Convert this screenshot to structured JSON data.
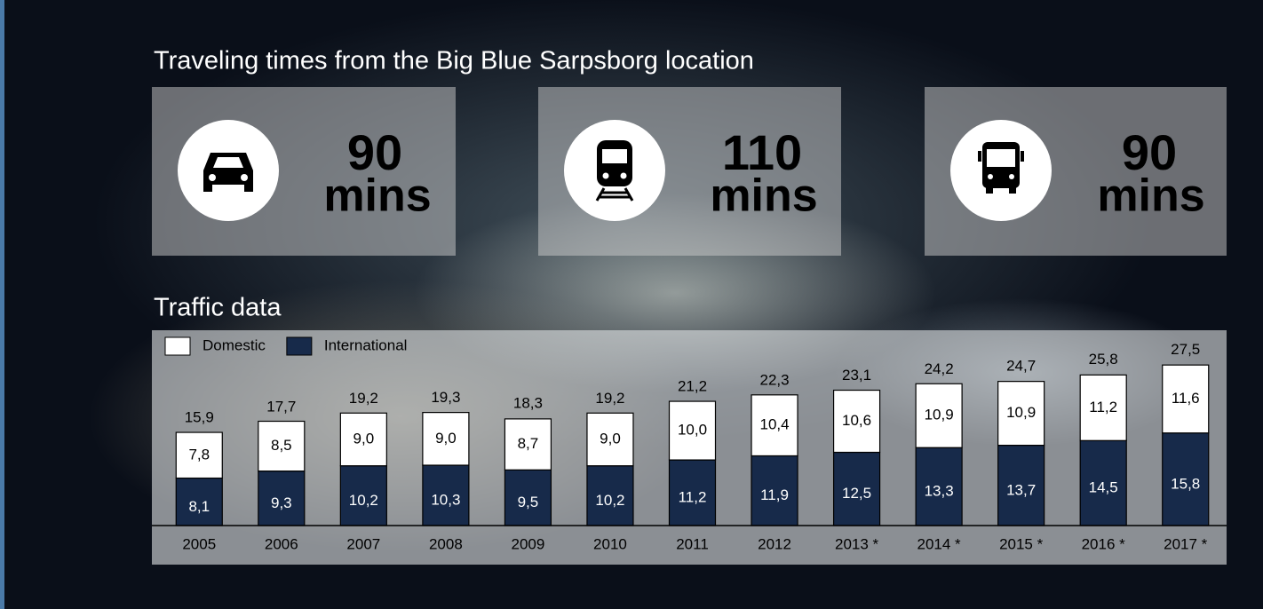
{
  "heading": "Traveling times from the Big Blue Sarpsborg location",
  "travel": [
    {
      "mode": "car",
      "value": 90,
      "unit": "mins"
    },
    {
      "mode": "train",
      "value": 110,
      "unit": "mins"
    },
    {
      "mode": "bus",
      "value": 90,
      "unit": "mins"
    }
  ],
  "section_title": "Traffic data",
  "chart_data": {
    "type": "stacked-bar",
    "categories": [
      "2005",
      "2006",
      "2007",
      "2008",
      "2009",
      "2010",
      "2011",
      "2012",
      "2013 *",
      "2014 *",
      "2015 *",
      "2016 *",
      "2017 *"
    ],
    "series": [
      {
        "name": "International",
        "color": "#172a4a",
        "values": [
          8.1,
          9.3,
          10.2,
          10.3,
          9.5,
          10.2,
          11.2,
          11.9,
          12.5,
          13.3,
          13.7,
          14.5,
          15.8
        ],
        "value_labels": [
          "8,1",
          "9,3",
          "10,2",
          "10,3",
          "9,5",
          "10,2",
          "11,2",
          "11,9",
          "12,5",
          "13,3",
          "13,7",
          "14,5",
          "15,8"
        ]
      },
      {
        "name": "Domestic",
        "color": "#ffffff",
        "values": [
          7.8,
          8.5,
          9.0,
          9.0,
          8.7,
          9.0,
          10.0,
          10.4,
          10.6,
          10.9,
          10.9,
          11.2,
          11.6
        ],
        "value_labels": [
          "7,8",
          "8,5",
          "9,0",
          "9,0",
          "8,7",
          "9,0",
          "10,0",
          "10,4",
          "10,6",
          "10,9",
          "10,9",
          "11,2",
          "11,6"
        ]
      }
    ],
    "totals": [
      15.9,
      17.7,
      19.2,
      19.3,
      18.3,
      19.2,
      21.2,
      22.3,
      23.1,
      24.2,
      24.7,
      25.8,
      27.5
    ],
    "total_labels": [
      "15,9",
      "17,7",
      "19,2",
      "19,3",
      "18,3",
      "19,2",
      "21,2",
      "22,3",
      "23,1",
      "24,2",
      "24,7",
      "25,8",
      "27,5"
    ],
    "ylim": [
      0,
      30
    ]
  }
}
